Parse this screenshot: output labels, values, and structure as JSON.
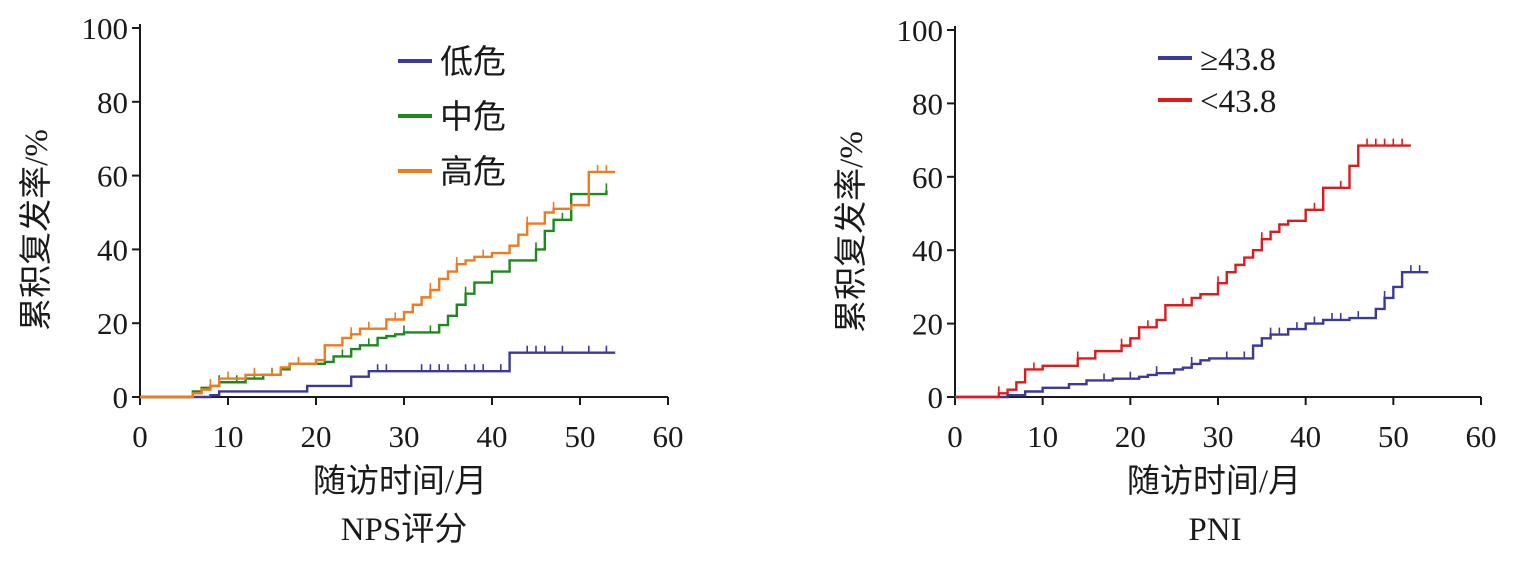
{
  "chart_data": [
    {
      "type": "line",
      "subtitle": "NPS评分",
      "xlabel": "随访时间/月",
      "ylabel": "累积复发率/%",
      "xlim": [
        0,
        60
      ],
      "ylim": [
        0,
        100
      ],
      "xticks": [
        "0",
        "10",
        "20",
        "30",
        "40",
        "50",
        "60"
      ],
      "yticks": [
        "0",
        "20",
        "40",
        "60",
        "80",
        "100"
      ],
      "grid": false,
      "legend_position": "top-center",
      "series": [
        {
          "name": "低危",
          "color": "#3a3a9a",
          "x": [
            0,
            5,
            8,
            9,
            18,
            19,
            23,
            24,
            26,
            42,
            54
          ],
          "y": [
            0,
            0,
            0.5,
            1.5,
            1.5,
            3,
            3,
            5.5,
            7,
            12,
            12
          ],
          "censor_x": [
            27,
            28,
            32,
            33,
            34,
            35,
            37,
            38,
            39,
            41,
            44,
            45,
            46,
            48,
            51,
            53
          ]
        },
        {
          "name": "中危",
          "color": "#1a8a1a",
          "x": [
            0,
            5,
            6,
            7,
            8,
            9,
            12,
            14,
            16,
            17,
            21,
            22,
            24,
            25,
            27,
            28,
            29,
            30,
            34,
            35,
            36,
            37,
            38,
            40,
            42,
            45,
            46,
            47,
            49,
            50,
            53
          ],
          "y": [
            0,
            0,
            1.5,
            2.5,
            3,
            4,
            5,
            6,
            7.5,
            9,
            9.5,
            11,
            13,
            14,
            16,
            16.5,
            17,
            17.5,
            19.5,
            22,
            25,
            28,
            31,
            34,
            37,
            40,
            45,
            48,
            55,
            55,
            56
          ],
          "censor_x": [
            9,
            11,
            13,
            15,
            23,
            26,
            30,
            33,
            37,
            45,
            48,
            51,
            53
          ]
        },
        {
          "name": "高危",
          "color": "#f07a1e",
          "x": [
            0,
            5,
            6,
            7,
            8,
            9,
            12,
            16,
            17,
            20,
            21,
            23,
            24,
            25,
            28,
            30,
            31,
            32,
            33,
            34,
            35,
            36,
            37,
            38,
            40,
            42,
            43,
            44,
            46,
            47,
            49,
            51,
            54
          ],
          "y": [
            0,
            0,
            1,
            2,
            3,
            5,
            6,
            8,
            9,
            10,
            14,
            16,
            17,
            18.5,
            21,
            23,
            25,
            27,
            29,
            32,
            34,
            36,
            37,
            38,
            39,
            41,
            44,
            47,
            50,
            51,
            52,
            61,
            61
          ],
          "censor_x": [
            8,
            10,
            13,
            15,
            18,
            24,
            26,
            29,
            33,
            36,
            39,
            44,
            47,
            52,
            53
          ]
        }
      ]
    },
    {
      "type": "line",
      "subtitle": "PNI",
      "xlabel": "随访时间/月",
      "ylabel": "累积复发率/%",
      "xlim": [
        0,
        60
      ],
      "ylim": [
        0,
        100
      ],
      "xticks": [
        "0",
        "10",
        "20",
        "30",
        "40",
        "50",
        "60"
      ],
      "yticks": [
        "0",
        "20",
        "40",
        "60",
        "80",
        "100"
      ],
      "grid": false,
      "legend_position": "top-center",
      "series": [
        {
          "name": "≥43.8",
          "color": "#3a3a9a",
          "x": [
            0,
            5,
            6,
            8,
            10,
            13,
            15,
            18,
            21,
            22,
            23,
            25,
            26,
            27,
            28,
            29,
            30,
            34,
            35,
            36,
            38,
            40,
            42,
            45,
            48,
            49,
            50,
            51,
            54
          ],
          "y": [
            0,
            0,
            0.5,
            1.5,
            2.5,
            3.5,
            4.5,
            5,
            5.5,
            6,
            6.5,
            7.5,
            8,
            9,
            10,
            10.5,
            10.5,
            14,
            16,
            17,
            18.5,
            20,
            21,
            21.5,
            24,
            27,
            30,
            34,
            34
          ],
          "censor_x": [
            17,
            20,
            23,
            27,
            31,
            33,
            36,
            37,
            39,
            41,
            43,
            44,
            46,
            49,
            52,
            53
          ]
        },
        {
          "name": "<43.8",
          "color": "#e01a1a",
          "x": [
            0,
            4,
            5,
            6,
            7,
            8,
            10,
            14,
            16,
            19,
            20,
            21,
            23,
            24,
            27,
            28,
            30,
            31,
            32,
            33,
            34,
            35,
            36,
            37,
            38,
            40,
            42,
            45,
            46,
            52
          ],
          "y": [
            0,
            0,
            1,
            2,
            4,
            7.5,
            8.5,
            10.5,
            12.5,
            14,
            16,
            19,
            21,
            25,
            27,
            28,
            31,
            34,
            36,
            38,
            40,
            43,
            45,
            47,
            48,
            51,
            57,
            63,
            68.5,
            68.5
          ],
          "censor_x": [
            5,
            9,
            14,
            19,
            22,
            26,
            30,
            35,
            41,
            44,
            47,
            48,
            49,
            50,
            51
          ]
        }
      ]
    }
  ]
}
